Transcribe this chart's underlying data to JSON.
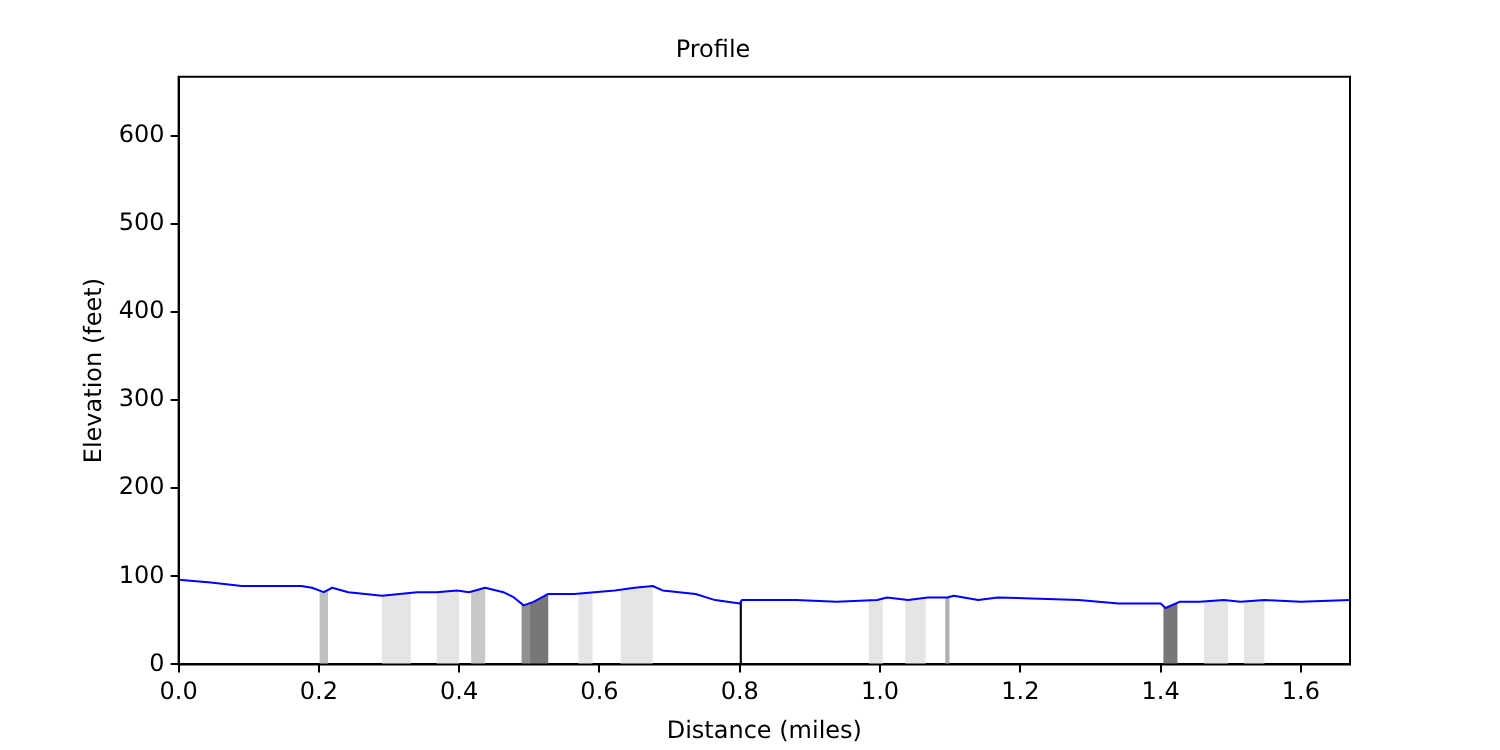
{
  "chart_data": {
    "type": "line",
    "title": "Profile",
    "xlabel": "Distance (miles)",
    "ylabel": "Elevation (feet)",
    "x": [
      0,
      0.046,
      0.09,
      0.175,
      0.19,
      0.207,
      0.219,
      0.242,
      0.29,
      0.34,
      0.368,
      0.397,
      0.414,
      0.437,
      0.463,
      0.478,
      0.492,
      0.506,
      0.527,
      0.564,
      0.622,
      0.65,
      0.676,
      0.69,
      0.737,
      0.765,
      0.8,
      0.803,
      0.88,
      0.938,
      0.996,
      1.01,
      1.04,
      1.068,
      1.096,
      1.105,
      1.14,
      1.168,
      1.283,
      1.34,
      1.4,
      1.407,
      1.427,
      1.456,
      1.49,
      1.514,
      1.548,
      1.6,
      1.67
    ],
    "series": [
      {
        "color": "#0000ff",
        "values": [
          96,
          93,
          89,
          89,
          87,
          82,
          87,
          82,
          78,
          82,
          82,
          84,
          82,
          87,
          82,
          76,
          67,
          71,
          80,
          80,
          84,
          87,
          89,
          84,
          80,
          73,
          69,
          73,
          73,
          71,
          73,
          76,
          73,
          76,
          76,
          78,
          73,
          76,
          73,
          69,
          69,
          64,
          71,
          71,
          73,
          71,
          73,
          71,
          73
        ]
      }
    ],
    "xlim": [
      0,
      1.67
    ],
    "ylim": [
      0,
      667
    ],
    "xticks": [
      {
        "value": 0,
        "label": "0.0"
      },
      {
        "value": 0.2,
        "label": "0.2"
      },
      {
        "value": 0.4,
        "label": "0.4"
      },
      {
        "value": 0.6,
        "label": "0.6"
      },
      {
        "value": 0.8,
        "label": "0.8"
      },
      {
        "value": 1,
        "label": "1.0"
      },
      {
        "value": 1.2,
        "label": "1.2"
      },
      {
        "value": 1.4,
        "label": "1.4"
      },
      {
        "value": 1.6,
        "label": "1.6"
      }
    ],
    "yticks": [
      0,
      100,
      200,
      300,
      400,
      500,
      600
    ],
    "grid": false,
    "legend": false,
    "marker": "none",
    "line_style": "solid",
    "bands": [
      {
        "axis": "x",
        "from": 0.201,
        "to": 0.213,
        "color": "#c0c0c0"
      },
      {
        "axis": "x",
        "from": 0.29,
        "to": 0.331,
        "color": "#e5e5e5"
      },
      {
        "axis": "x",
        "from": 0.368,
        "to": 0.4,
        "color": "#e5e5e5"
      },
      {
        "axis": "x",
        "from": 0.417,
        "to": 0.437,
        "color": "#c8c8c8"
      },
      {
        "axis": "x",
        "from": 0.489,
        "to": 0.501,
        "color": "#909090"
      },
      {
        "axis": "x",
        "from": 0.501,
        "to": 0.527,
        "color": "#777777"
      },
      {
        "axis": "x",
        "from": 0.57,
        "to": 0.59,
        "color": "#e5e5e5"
      },
      {
        "axis": "x",
        "from": 0.63,
        "to": 0.676,
        "color": "#e5e5e5"
      },
      {
        "axis": "x",
        "from": 0.8,
        "to": 0.803,
        "color": "#000000"
      },
      {
        "axis": "x",
        "from": 0.984,
        "to": 1.004,
        "color": "#e5e5e5"
      },
      {
        "axis": "x",
        "from": 1.036,
        "to": 1.065,
        "color": "#e5e5e5"
      },
      {
        "axis": "x",
        "from": 1.093,
        "to": 1.099,
        "color": "#b0b0b0"
      },
      {
        "axis": "x",
        "from": 1.404,
        "to": 1.424,
        "color": "#777777"
      },
      {
        "axis": "x",
        "from": 1.462,
        "to": 1.496,
        "color": "#e5e5e5"
      },
      {
        "axis": "x",
        "from": 1.519,
        "to": 1.548,
        "color": "#e5e5e5"
      }
    ]
  }
}
